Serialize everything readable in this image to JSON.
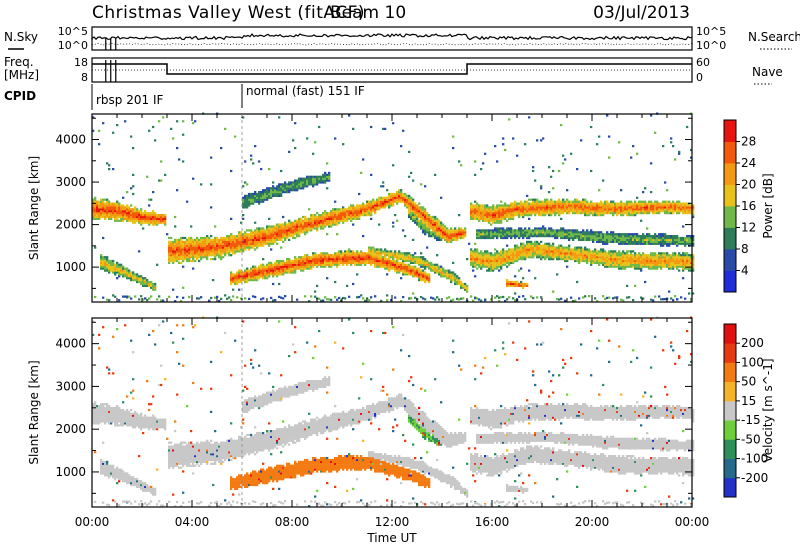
{
  "header": {
    "station": "Christmas Valley West (fitACF)",
    "beam": "Beam 10",
    "date": "03/Jul/2013"
  },
  "strip_labels": {
    "nsky": "N.Sky",
    "nsearch": "N.Search",
    "freq_line1": "Freq.",
    "freq_line2": "[MHz]",
    "nave": "Nave",
    "cpid": "CPID"
  },
  "strip_ticks": {
    "noise_left": [
      "10^5",
      "10^0"
    ],
    "noise_right": [
      "10^5",
      "10^0"
    ],
    "freq_left": [
      "18",
      "8"
    ],
    "freq_right": [
      "60",
      "0"
    ]
  },
  "cpid_segments": [
    {
      "label": "rbsp 201 IF",
      "start_hour": 0.0,
      "end_hour": 6.0
    },
    {
      "label": "normal (fast) 151 IF",
      "start_hour": 6.0,
      "end_hour": 24.0
    }
  ],
  "chart_data": [
    {
      "type": "heatmap",
      "name": "power",
      "ylabel": "Slant Range [km]",
      "yticks": [
        "1000",
        "2000",
        "3000",
        "4000"
      ],
      "ylim": [
        180,
        4600
      ],
      "colorbar_label": "Power [dB]",
      "colorbar_ticks": [
        "4",
        "8",
        "12",
        "16",
        "20",
        "24",
        "28"
      ],
      "colorbar_colors": [
        "#1f2dd8",
        "#2a4aa8",
        "#2e7d5a",
        "#6fb84a",
        "#e6c21a",
        "#f39a12",
        "#f25a0a",
        "#e8120f"
      ]
    },
    {
      "type": "heatmap",
      "name": "velocity",
      "ylabel": "Slant Range [km]",
      "yticks": [
        "1000",
        "2000",
        "3000",
        "4000"
      ],
      "ylim": [
        180,
        4600
      ],
      "colorbar_label": "Velocity [m s^-1]",
      "colorbar_ticks": [
        "200",
        "100",
        "50",
        "15",
        "-15",
        "-50",
        "-100",
        "-200"
      ],
      "colorbar_colors": [
        "#2131c9",
        "#256a8a",
        "#2d8f5a",
        "#6fcf3a",
        "#c8c8c8",
        "#f5b32a",
        "#f37b12",
        "#e83a10",
        "#e01010"
      ]
    }
  ],
  "xaxis": {
    "label": "Time UT",
    "ticks": [
      "00:00",
      "04:00",
      "08:00",
      "12:00",
      "16:00",
      "20:00",
      "00:00"
    ]
  }
}
